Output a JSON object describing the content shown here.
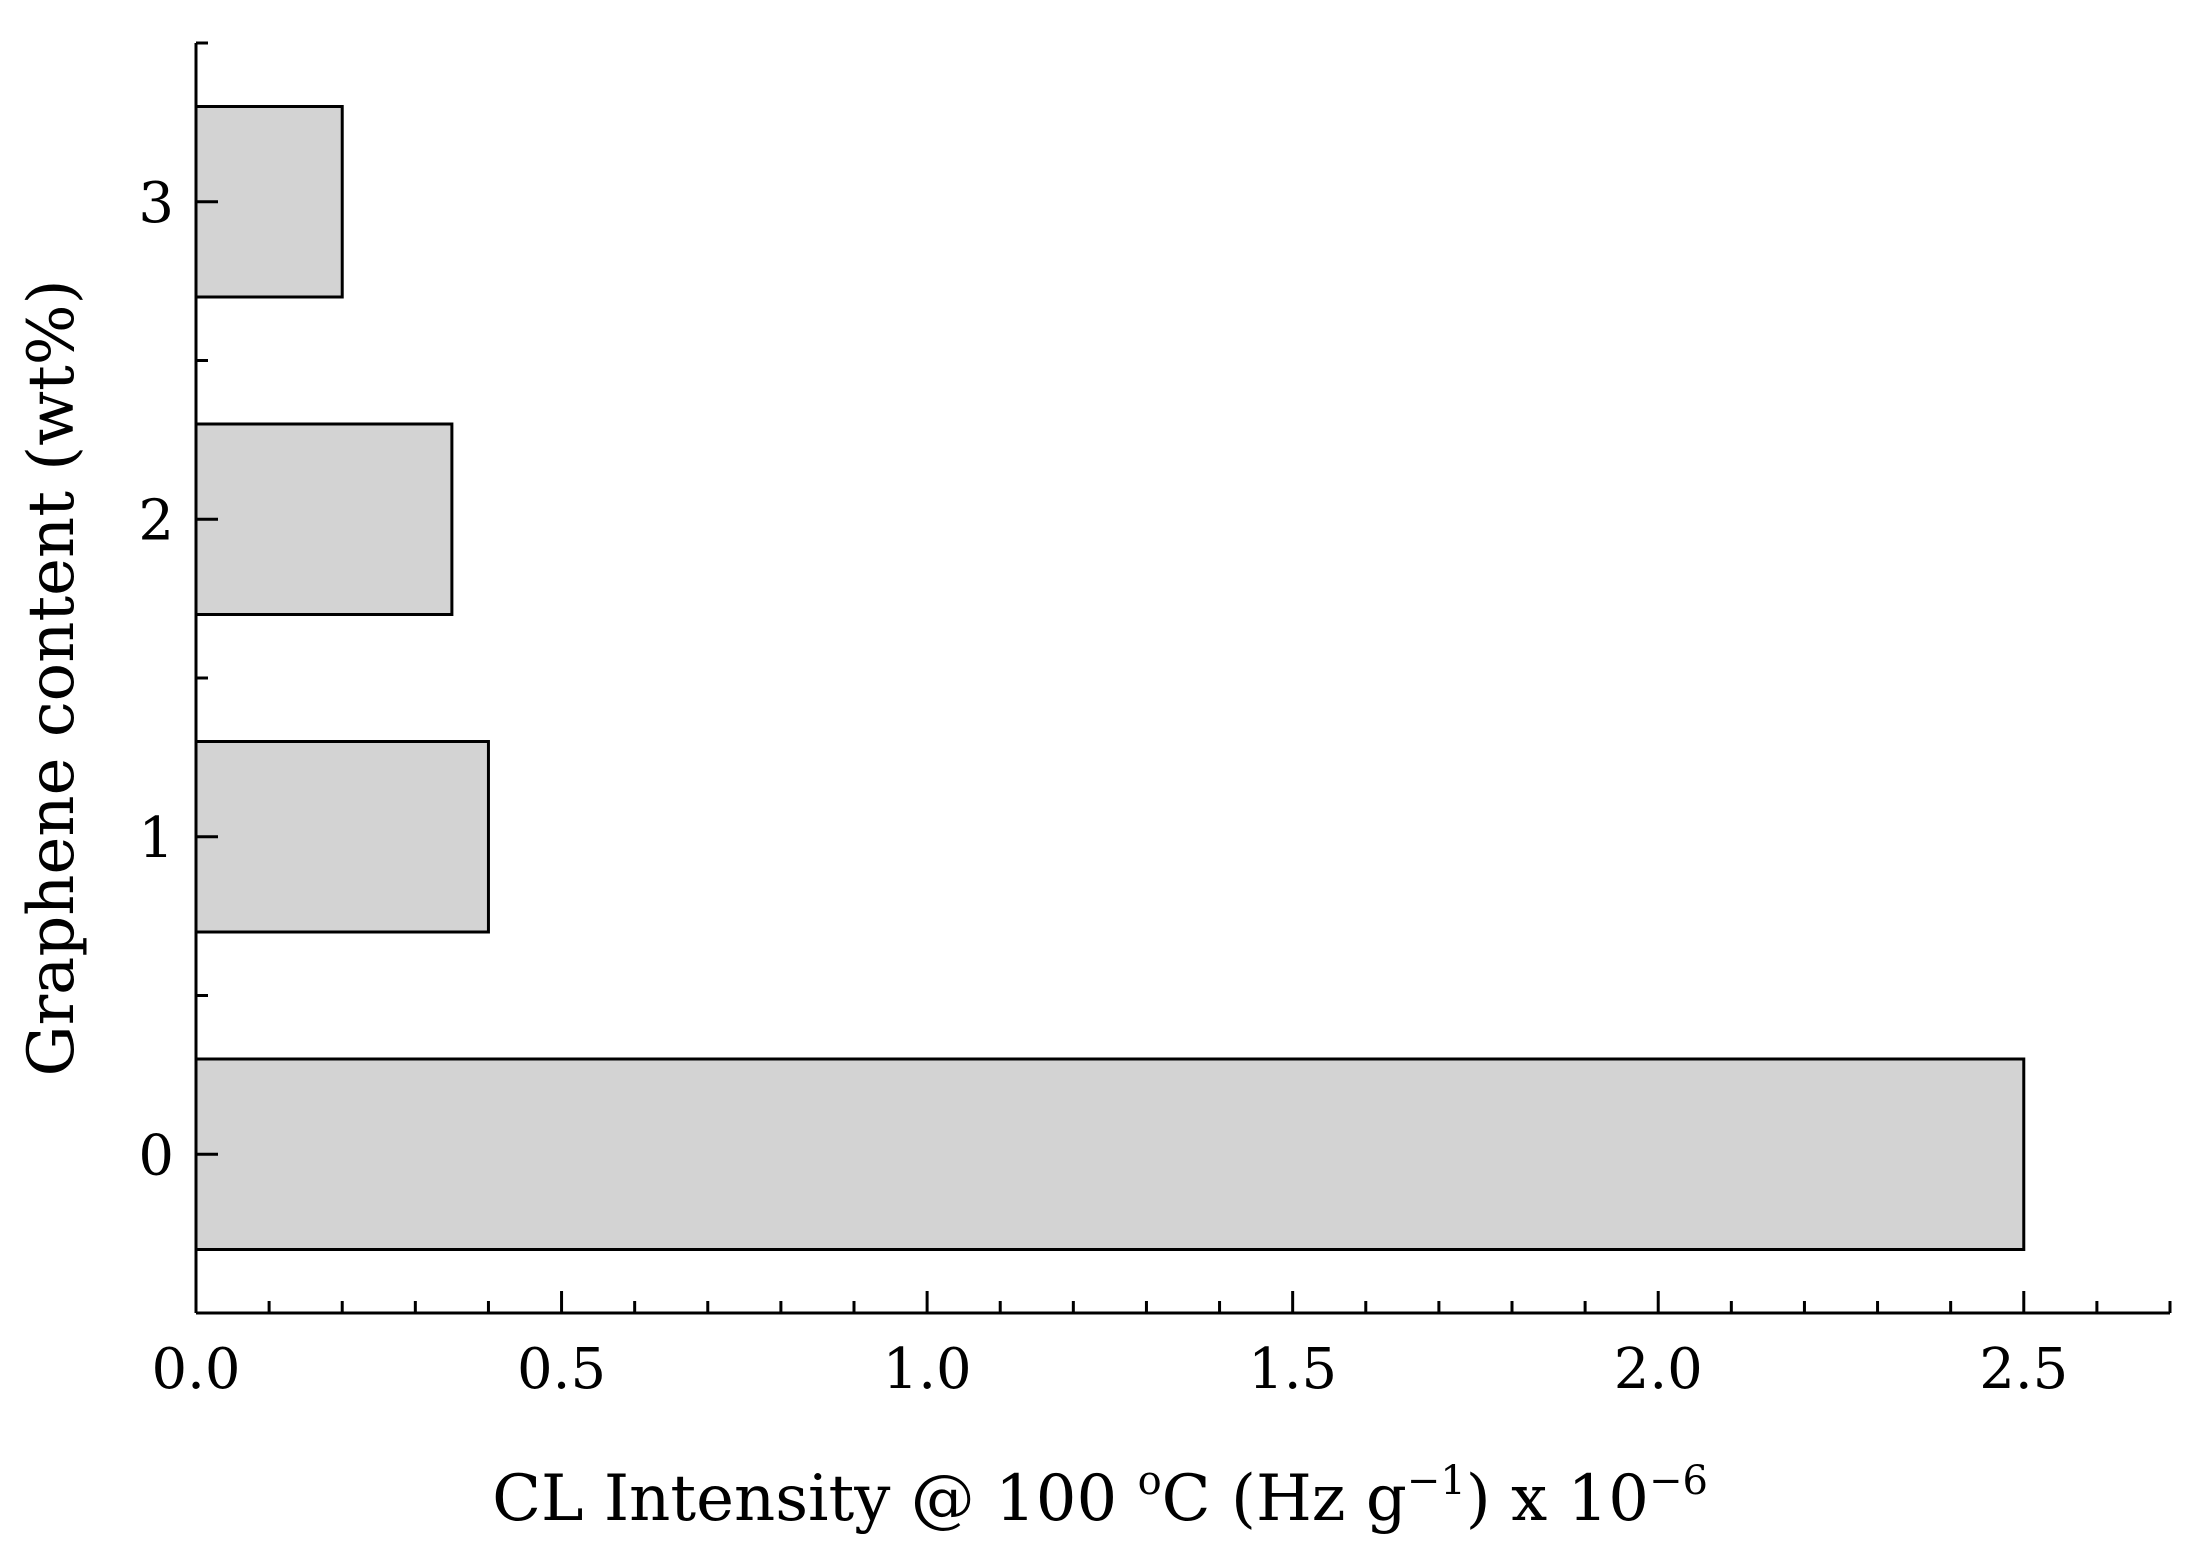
{
  "chart_data": {
    "type": "bar",
    "orientation": "horizontal",
    "categories": [
      "0",
      "1",
      "2",
      "3"
    ],
    "values": [
      2.5,
      0.4,
      0.35,
      0.2
    ],
    "xlabel": {
      "prefix": "CL Intensity @ 100 ",
      "degree": "o",
      "unit_open": "C (Hz g",
      "exponent": "−1",
      "unit_close": ") x 10",
      "scale_exponent": "−6"
    },
    "ylabel": "Graphene content (wt%)",
    "xlim": [
      0,
      2.7
    ],
    "ylim": [
      -0.5,
      3.5
    ],
    "x_ticks": [
      "0.0",
      "0.5",
      "1.0",
      "1.5",
      "2.0",
      "2.5"
    ],
    "y_ticks": [
      "0",
      "1",
      "2",
      "3"
    ],
    "bar_height": 0.6,
    "bar_color": "#d3d3d3",
    "bar_edge_color": "#000000",
    "grid": false,
    "legend": "none"
  }
}
